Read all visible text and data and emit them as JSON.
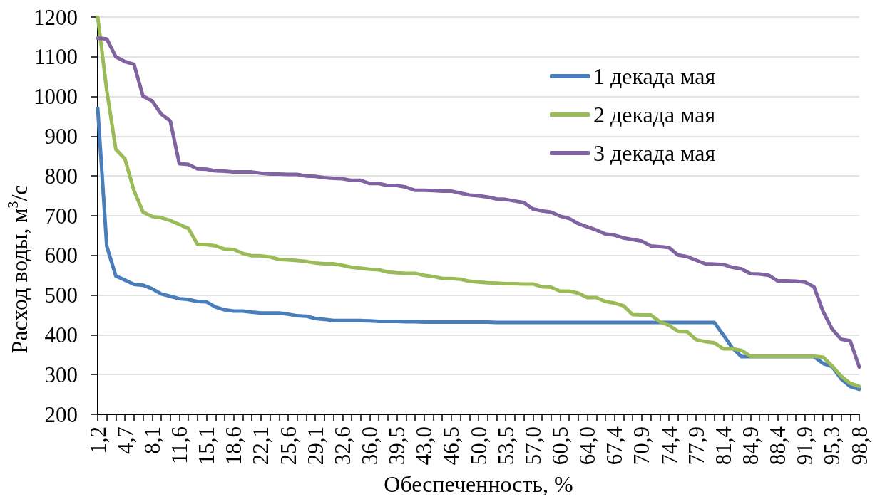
{
  "chart_data": {
    "type": "line",
    "xlabel": "Обеспеченность, %",
    "ylabel": "Расход воды, м$^{3}$/с",
    "categories": [
      "1,2",
      null,
      null,
      "4,7",
      null,
      null,
      "8,1",
      null,
      null,
      "11,6",
      null,
      null,
      "15,1",
      null,
      null,
      "18,6",
      null,
      null,
      "22,1",
      null,
      null,
      "25,6",
      null,
      null,
      "29,1",
      null,
      null,
      "32,6",
      null,
      null,
      "36,0",
      null,
      null,
      "39,5",
      null,
      null,
      "43,0",
      null,
      null,
      "46,5",
      null,
      null,
      "50,0",
      null,
      null,
      "53,5",
      null,
      null,
      "57,0",
      null,
      null,
      "60,5",
      null,
      null,
      "64,0",
      null,
      null,
      "67,4",
      null,
      null,
      "70,9",
      null,
      null,
      "74,4",
      null,
      null,
      "77,9",
      null,
      null,
      "81,4",
      null,
      null,
      "84,9",
      null,
      null,
      "88,4",
      null,
      null,
      "91,9",
      null,
      null,
      "95,3",
      null,
      null,
      "98,8"
    ],
    "series": [
      {
        "name": "1 декада мая",
        "color": "#4a7ebb",
        "values": [
          970,
          623,
          548,
          538,
          527,
          525,
          516,
          503,
          497,
          491,
          489,
          484,
          483,
          470,
          463,
          460,
          460,
          457,
          455,
          455,
          455,
          452,
          448,
          447,
          441,
          439,
          436,
          436,
          436,
          436,
          435,
          434,
          434,
          434,
          433,
          433,
          432,
          432,
          432,
          432,
          432,
          432,
          432,
          432,
          431,
          431,
          431,
          431,
          431,
          431,
          431,
          431,
          431,
          431,
          431,
          431,
          431,
          431,
          431,
          431,
          431,
          431,
          431,
          431,
          431,
          431,
          431,
          431,
          431,
          400,
          367,
          345,
          345,
          345,
          345,
          345,
          345,
          345,
          345,
          345,
          328,
          320,
          289,
          270,
          263
        ]
      },
      {
        "name": "2 декада мая",
        "color": "#9bbb59",
        "values": [
          1200,
          1015,
          867,
          843,
          763,
          709,
          698,
          695,
          688,
          678,
          668,
          628,
          627,
          624,
          616,
          615,
          605,
          599,
          599,
          596,
          590,
          589,
          587,
          585,
          581,
          579,
          579,
          575,
          570,
          568,
          565,
          564,
          558,
          556,
          555,
          555,
          550,
          547,
          542,
          542,
          540,
          535,
          533,
          531,
          530,
          529,
          529,
          528,
          528,
          521,
          520,
          510,
          510,
          505,
          494,
          494,
          484,
          480,
          473,
          451,
          450,
          450,
          433,
          424,
          409,
          408,
          388,
          383,
          380,
          365,
          365,
          361,
          346,
          346,
          346,
          346,
          346,
          346,
          346,
          346,
          344,
          322,
          296,
          278,
          270
        ]
      },
      {
        "name": "3 декада мая",
        "color": "#8064a2",
        "values": [
          1147,
          1145,
          1100,
          1088,
          1081,
          1001,
          989,
          956,
          939,
          831,
          829,
          818,
          817,
          813,
          812,
          810,
          810,
          810,
          807,
          805,
          805,
          804,
          804,
          800,
          799,
          796,
          794,
          793,
          789,
          789,
          781,
          781,
          776,
          776,
          772,
          764,
          764,
          763,
          762,
          762,
          757,
          752,
          750,
          747,
          742,
          741,
          737,
          733,
          717,
          712,
          709,
          699,
          693,
          680,
          672,
          664,
          654,
          651,
          644,
          640,
          636,
          624,
          622,
          620,
          601,
          597,
          588,
          579,
          578,
          577,
          570,
          566,
          554,
          553,
          550,
          536,
          536,
          535,
          533,
          521,
          459,
          415,
          389,
          385,
          319
        ]
      }
    ],
    "ylim": [
      200,
      1200
    ],
    "yticks": [
      200,
      300,
      400,
      500,
      600,
      700,
      800,
      900,
      1000,
      1100,
      1200
    ],
    "grid": "y",
    "legend": "top right",
    "marker": "none",
    "line_style": "solid"
  }
}
